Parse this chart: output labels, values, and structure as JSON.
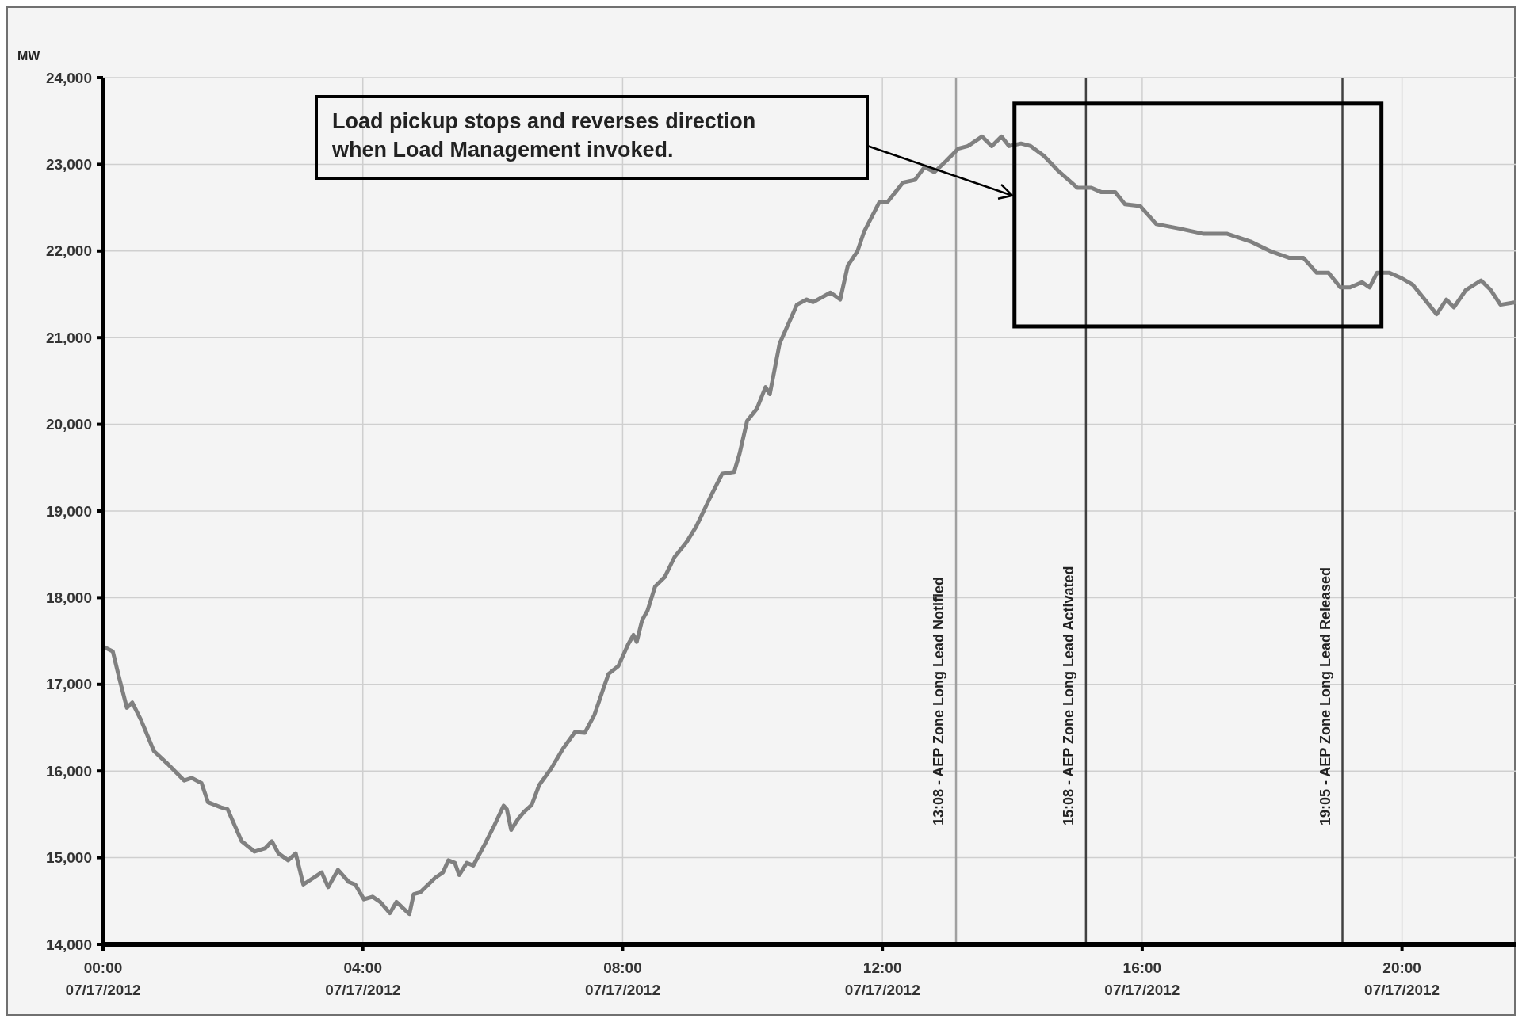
{
  "chart_data": {
    "type": "line",
    "ylabel": "MW",
    "xlim": [
      "2012-07-17T00:00",
      "2012-07-17T21:45"
    ],
    "ylim": [
      14000,
      24000
    ],
    "xticks": [
      {
        "value": "2012-07-17T00:00",
        "label": "00:00\n07/17/2012"
      },
      {
        "value": "2012-07-17T04:00",
        "label": "04:00\n07/17/2012"
      },
      {
        "value": "2012-07-17T08:00",
        "label": "08:00\n07/17/2012"
      },
      {
        "value": "2012-07-17T12:00",
        "label": "12:00\n07/17/2012"
      },
      {
        "value": "2012-07-17T16:00",
        "label": "16:00\n07/17/2012"
      },
      {
        "value": "2012-07-17T20:00",
        "label": "20:00\n07/17/2012"
      }
    ],
    "yticks": [
      {
        "value": 14000,
        "label": "14,000"
      },
      {
        "value": 15000,
        "label": "15,000"
      },
      {
        "value": 16000,
        "label": "16,000"
      },
      {
        "value": 17000,
        "label": "17,000"
      },
      {
        "value": 18000,
        "label": "18,000"
      },
      {
        "value": 19000,
        "label": "19,000"
      },
      {
        "value": 20000,
        "label": "20,000"
      },
      {
        "value": 21000,
        "label": "21,000"
      },
      {
        "value": 22000,
        "label": "22,000"
      },
      {
        "value": 23000,
        "label": "23,000"
      },
      {
        "value": 24000,
        "label": "24,000"
      }
    ],
    "grid": true,
    "marker": "none",
    "line_style": "solid",
    "series": [
      {
        "color": "#808080",
        "x": [
          "2012-07-17T00:01",
          "2012-07-17T00:09",
          "2012-07-17T00:15",
          "2012-07-17T00:22",
          "2012-07-17T00:27",
          "2012-07-17T00:35",
          "2012-07-17T00:47",
          "2012-07-17T00:59",
          "2012-07-17T01:15",
          "2012-07-17T01:22",
          "2012-07-17T01:31",
          "2012-07-17T01:37",
          "2012-07-17T01:49",
          "2012-07-17T01:55",
          "2012-07-17T02:08",
          "2012-07-17T02:20",
          "2012-07-17T02:30",
          "2012-07-17T02:36",
          "2012-07-17T02:42",
          "2012-07-17T02:51",
          "2012-07-17T02:58",
          "2012-07-17T03:05",
          "2012-07-17T03:22",
          "2012-07-17T03:28",
          "2012-07-17T03:37",
          "2012-07-17T03:47",
          "2012-07-17T03:53",
          "2012-07-17T04:01",
          "2012-07-17T04:09",
          "2012-07-17T04:16",
          "2012-07-17T04:25",
          "2012-07-17T04:31",
          "2012-07-17T04:43",
          "2012-07-17T04:47",
          "2012-07-17T04:53",
          "2012-07-17T05:07",
          "2012-07-17T05:14",
          "2012-07-17T05:19",
          "2012-07-17T05:25",
          "2012-07-17T05:29",
          "2012-07-17T05:36",
          "2012-07-17T05:42",
          "2012-07-17T05:52",
          "2012-07-17T06:01",
          "2012-07-17T06:10",
          "2012-07-17T06:13",
          "2012-07-17T06:17",
          "2012-07-17T06:23",
          "2012-07-17T06:29",
          "2012-07-17T06:36",
          "2012-07-17T06:43",
          "2012-07-17T06:54",
          "2012-07-17T07:05",
          "2012-07-17T07:16",
          "2012-07-17T07:25",
          "2012-07-17T07:34",
          "2012-07-17T07:43",
          "2012-07-17T07:47",
          "2012-07-17T07:56",
          "2012-07-17T08:05",
          "2012-07-17T08:10",
          "2012-07-17T08:13",
          "2012-07-17T08:18",
          "2012-07-17T08:23",
          "2012-07-17T08:30",
          "2012-07-17T08:39",
          "2012-07-17T08:48",
          "2012-07-17T08:59",
          "2012-07-17T09:08",
          "2012-07-17T09:21",
          "2012-07-17T09:32",
          "2012-07-17T09:43",
          "2012-07-17T09:48",
          "2012-07-17T09:55",
          "2012-07-17T10:04",
          "2012-07-17T10:12",
          "2012-07-17T10:16",
          "2012-07-17T10:25",
          "2012-07-17T10:41",
          "2012-07-17T10:50",
          "2012-07-17T10:56",
          "2012-07-17T11:12",
          "2012-07-17T11:21",
          "2012-07-17T11:28",
          "2012-07-17T11:37",
          "2012-07-17T11:43",
          "2012-07-17T11:57",
          "2012-07-17T12:05",
          "2012-07-17T12:19",
          "2012-07-17T12:30",
          "2012-07-17T12:39",
          "2012-07-17T12:48",
          "2012-07-17T12:59",
          "2012-07-17T13:10",
          "2012-07-17T13:19",
          "2012-07-17T13:32",
          "2012-07-17T13:41",
          "2012-07-17T13:50",
          "2012-07-17T13:57",
          "2012-07-17T14:08",
          "2012-07-17T14:17",
          "2012-07-17T14:29",
          "2012-07-17T14:42",
          "2012-07-17T15:00",
          "2012-07-17T15:13",
          "2012-07-17T15:22",
          "2012-07-17T15:35",
          "2012-07-17T15:44",
          "2012-07-17T15:58",
          "2012-07-17T16:13",
          "2012-07-17T16:34",
          "2012-07-17T16:56",
          "2012-07-17T17:18",
          "2012-07-17T17:40",
          "2012-07-17T17:58",
          "2012-07-17T18:16",
          "2012-07-17T18:29",
          "2012-07-17T18:41",
          "2012-07-17T18:52",
          "2012-07-17T19:03",
          "2012-07-17T19:12",
          "2012-07-17T19:23",
          "2012-07-17T19:30",
          "2012-07-17T19:37",
          "2012-07-17T19:48",
          "2012-07-17T19:59",
          "2012-07-17T20:10",
          "2012-07-17T20:23",
          "2012-07-17T20:32",
          "2012-07-17T20:41",
          "2012-07-17T20:48",
          "2012-07-17T20:59",
          "2012-07-17T21:13",
          "2012-07-17T21:22",
          "2012-07-17T21:31",
          "2012-07-17T21:45"
        ],
        "values": [
          17430,
          17380,
          17070,
          16730,
          16790,
          16590,
          16230,
          16090,
          15890,
          15920,
          15860,
          15640,
          15580,
          15560,
          15190,
          15070,
          15110,
          15190,
          15050,
          14970,
          15050,
          14690,
          14830,
          14660,
          14860,
          14720,
          14690,
          14520,
          14550,
          14490,
          14360,
          14490,
          14350,
          14580,
          14600,
          14770,
          14830,
          14970,
          14940,
          14800,
          14940,
          14910,
          15140,
          15360,
          15600,
          15560,
          15320,
          15440,
          15530,
          15610,
          15840,
          16030,
          16260,
          16450,
          16440,
          16650,
          16980,
          17120,
          17210,
          17460,
          17570,
          17490,
          17740,
          17850,
          18130,
          18240,
          18470,
          18640,
          18820,
          19160,
          19430,
          19450,
          19660,
          20040,
          20180,
          20430,
          20350,
          20930,
          21380,
          21440,
          21410,
          21520,
          21440,
          21830,
          22000,
          22220,
          22560,
          22570,
          22790,
          22820,
          22970,
          22910,
          23040,
          23180,
          23210,
          23320,
          23210,
          23320,
          23210,
          23240,
          23210,
          23100,
          22930,
          22730,
          22730,
          22680,
          22680,
          22540,
          22520,
          22310,
          22260,
          22200,
          22200,
          22110,
          22000,
          21920,
          21920,
          21750,
          21750,
          21580,
          21580,
          21640,
          21580,
          21750,
          21750,
          21690,
          21610,
          21410,
          21270,
          21440,
          21350,
          21550,
          21660,
          21550,
          21380,
          21410
        ]
      }
    ],
    "ref_lines": [
      {
        "axis": "x",
        "value": "2012-07-17T13:08",
        "label": "13:08 - AEP Zone Long Lead Notified",
        "color": "#a0a0a0"
      },
      {
        "axis": "x",
        "value": "2012-07-17T15:08",
        "label": "15:08 - AEP Zone Long Lead Activated",
        "color": "#404040"
      },
      {
        "axis": "x",
        "value": "2012-07-17T19:05",
        "label": "19:05 - AEP Zone Long Lead Released",
        "color": "#404040"
      }
    ],
    "annotations": [
      "Load pickup stops and reverses direction when Load Management invoked."
    ]
  }
}
